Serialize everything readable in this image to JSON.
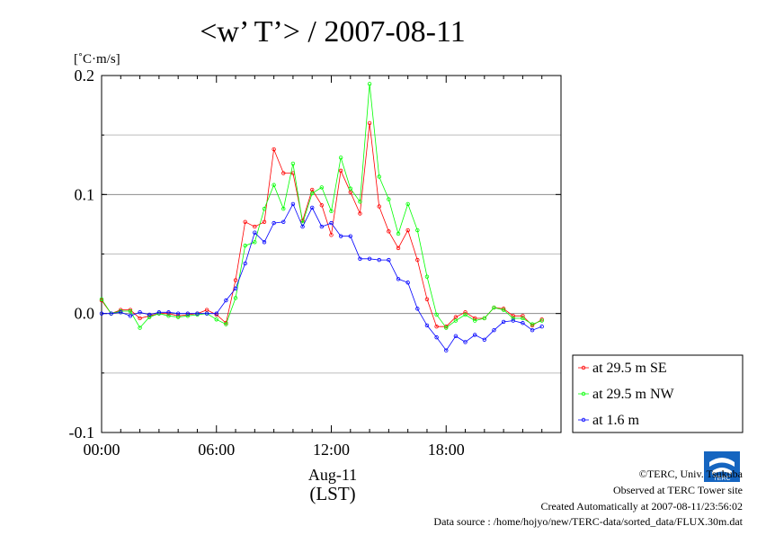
{
  "chart_data": {
    "type": "line",
    "title": "<w’ T’> / 2007-08-11",
    "ylabel": "[˚C·m/s]",
    "xlabel": "Aug-11",
    "xlabel2": "(LST)",
    "ylim": [
      -0.1,
      0.2
    ],
    "yticks": [
      -0.1,
      0.0,
      0.1,
      0.2
    ],
    "ytick_labels": [
      "-0.1",
      "0.0",
      "0.1",
      "0.2"
    ],
    "xlim": [
      0,
      24
    ],
    "xticks": [
      0,
      6,
      12,
      18
    ],
    "xtick_labels": [
      "00:00",
      "06:00",
      "12:00",
      "18:00"
    ],
    "grid": true,
    "legend_position": "right-bottom",
    "series": [
      {
        "name": "at 29.5 m SE",
        "color": "#ff0000",
        "x": [
          0,
          0.5,
          1,
          1.5,
          2,
          2.5,
          3,
          3.5,
          4,
          4.5,
          5,
          5.5,
          6,
          6.5,
          7,
          7.5,
          8,
          8.5,
          9,
          9.5,
          10,
          10.5,
          11,
          11.5,
          12,
          12.5,
          13,
          13.5,
          14,
          14.5,
          15,
          15.5,
          16,
          16.5,
          17,
          17.5,
          18,
          18.5,
          19,
          19.5,
          20,
          20.5,
          21,
          21.5,
          22,
          22.5,
          23
        ],
        "values": [
          0.011,
          0.0,
          0.003,
          0.003,
          -0.004,
          -0.002,
          0.0,
          0.0,
          -0.002,
          -0.001,
          0.0,
          0.003,
          -0.001,
          -0.008,
          0.028,
          0.077,
          0.073,
          0.077,
          0.138,
          0.118,
          0.118,
          0.078,
          0.104,
          0.091,
          0.066,
          0.12,
          0.102,
          0.084,
          0.16,
          0.09,
          0.069,
          0.055,
          0.07,
          0.045,
          0.012,
          -0.011,
          -0.011,
          -0.003,
          0.001,
          -0.004,
          -0.004,
          0.005,
          0.004,
          -0.002,
          -0.002,
          -0.01,
          -0.005
        ]
      },
      {
        "name": "at 29.5 m NW",
        "color": "#00ff00",
        "x": [
          0,
          0.5,
          1,
          1.5,
          2,
          2.5,
          3,
          3.5,
          4,
          4.5,
          5,
          5.5,
          6,
          6.5,
          7,
          7.5,
          8,
          8.5,
          9,
          9.5,
          10,
          10.5,
          11,
          11.5,
          12,
          12.5,
          13,
          13.5,
          14,
          14.5,
          15,
          15.5,
          16,
          16.5,
          17,
          17.5,
          18,
          18.5,
          19,
          19.5,
          20,
          20.5,
          21,
          21.5,
          22,
          22.5,
          23
        ],
        "values": [
          0.012,
          0.0,
          0.002,
          0.002,
          -0.012,
          -0.003,
          0.0,
          -0.002,
          -0.003,
          -0.002,
          -0.001,
          0.0,
          -0.005,
          -0.009,
          0.013,
          0.057,
          0.06,
          0.088,
          0.108,
          0.088,
          0.126,
          0.076,
          0.101,
          0.106,
          0.086,
          0.131,
          0.105,
          0.094,
          0.193,
          0.115,
          0.096,
          0.067,
          0.092,
          0.07,
          0.031,
          -0.001,
          -0.012,
          -0.006,
          -0.001,
          -0.006,
          -0.004,
          0.005,
          0.003,
          -0.004,
          -0.004,
          -0.009,
          -0.006
        ]
      },
      {
        "name": "at 1.6 m",
        "color": "#0000ff",
        "x": [
          0,
          0.5,
          1,
          1.5,
          2,
          2.5,
          3,
          3.5,
          4,
          4.5,
          5,
          5.5,
          6,
          6.5,
          7,
          7.5,
          8,
          8.5,
          9,
          9.5,
          10,
          10.5,
          11,
          11.5,
          12,
          12.5,
          13,
          13.5,
          14,
          14.5,
          15,
          15.5,
          16,
          16.5,
          17,
          17.5,
          18,
          18.5,
          19,
          19.5,
          20,
          20.5,
          21,
          21.5,
          22,
          22.5,
          23
        ],
        "values": [
          0.0,
          0.0,
          0.001,
          -0.002,
          0.001,
          -0.001,
          0.001,
          0.001,
          0.0,
          0.0,
          0.0,
          0.0,
          0.0,
          0.011,
          0.021,
          0.042,
          0.068,
          0.06,
          0.076,
          0.077,
          0.092,
          0.073,
          0.089,
          0.073,
          0.076,
          0.065,
          0.065,
          0.046,
          0.046,
          0.045,
          0.045,
          0.029,
          0.026,
          0.004,
          -0.01,
          -0.02,
          -0.031,
          -0.019,
          -0.024,
          -0.018,
          -0.022,
          -0.014,
          -0.007,
          -0.006,
          -0.008,
          -0.014,
          -0.011
        ]
      }
    ]
  },
  "credits": {
    "copyright": "©TERC, Univ. Tsukuba",
    "observed": "Observed at TERC Tower site",
    "created": "Created Automatically at 2007-08-11/23:56:02",
    "source": "Data source : /home/hojyo/new/TERC-data/sorted_data/FLUX.30m.dat",
    "logo_text": "TERC"
  }
}
